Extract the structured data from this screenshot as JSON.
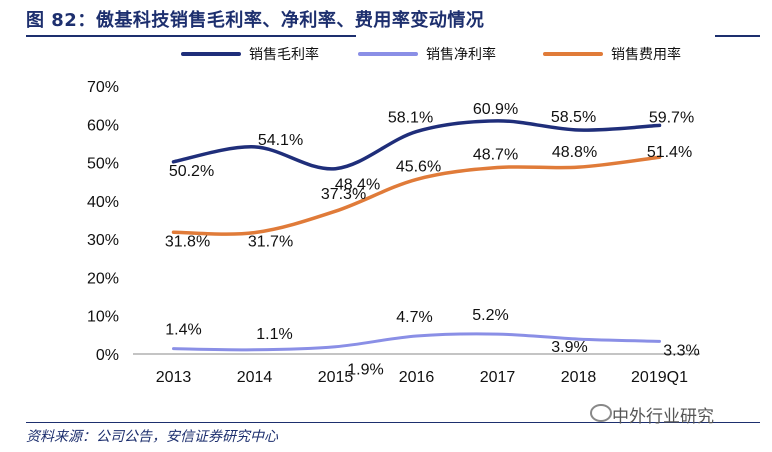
{
  "figure": {
    "title": "图 82：傲基科技销售毛利率、净利率、费用率变动情况",
    "source": "资料来源：公司公告，安信证券研究中心",
    "watermark": "中外行业研究"
  },
  "chart_data": {
    "type": "line",
    "title": "图 82：傲基科技销售毛利率、净利率、费用率变动情况",
    "categories": [
      "2013",
      "2014",
      "2015",
      "2016",
      "2017",
      "2018",
      "2019Q1"
    ],
    "ylim": [
      0,
      70
    ],
    "yticks": [
      0,
      10,
      20,
      30,
      40,
      50,
      60,
      70
    ],
    "ytick_labels": [
      "0%",
      "10%",
      "20%",
      "30%",
      "40%",
      "50%",
      "60%",
      "70%"
    ],
    "xlabel": "",
    "ylabel": "",
    "grid": false,
    "legend_position": "top",
    "series": [
      {
        "name": "销售毛利率",
        "color": "#1f2e7a",
        "values": [
          50.2,
          54.1,
          48.4,
          58.1,
          60.9,
          58.5,
          59.7
        ],
        "labels": [
          "50.2%",
          "54.1%",
          "48.4%",
          "58.1%",
          "60.9%",
          "58.5%",
          "59.7%"
        ]
      },
      {
        "name": "销售净利率",
        "color": "#8a8fe6",
        "values": [
          1.4,
          1.1,
          1.9,
          4.7,
          5.2,
          3.9,
          3.3
        ],
        "labels": [
          "1.4%",
          "1.1%",
          "1.9%",
          "4.7%",
          "5.2%",
          "3.9%",
          "3.3%"
        ]
      },
      {
        "name": "销售费用率",
        "color": "#e07b39",
        "values": [
          31.8,
          31.7,
          37.3,
          45.6,
          48.7,
          48.8,
          51.4
        ],
        "labels": [
          "31.8%",
          "31.7%",
          "37.3%",
          "45.6%",
          "48.7%",
          "48.8%",
          "51.4%"
        ]
      }
    ]
  }
}
